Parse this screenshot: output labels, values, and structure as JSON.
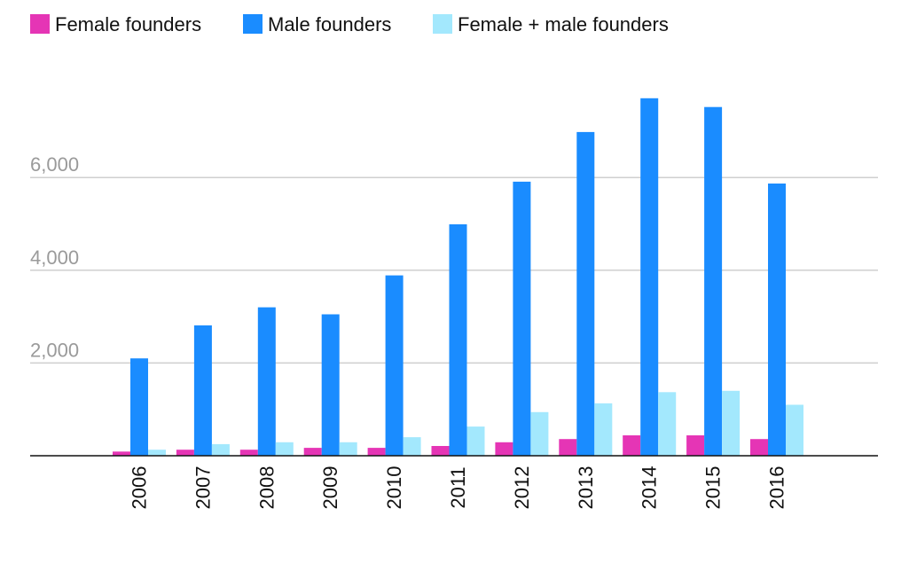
{
  "chart_data": {
    "type": "bar",
    "title": "",
    "xlabel": "",
    "ylabel": "",
    "categories": [
      "2006",
      "2007",
      "2008",
      "2009",
      "2010",
      "2011",
      "2012",
      "2013",
      "2014",
      "2015",
      "2016"
    ],
    "series": [
      {
        "name": "Female founders",
        "color": "#e535b5",
        "values": [
          90,
          130,
          130,
          170,
          170,
          210,
          290,
          360,
          440,
          440,
          360
        ]
      },
      {
        "name": "Male founders",
        "color": "#1a8cff",
        "values": [
          2100,
          2810,
          3200,
          3050,
          3890,
          4990,
          5910,
          6980,
          7710,
          7520,
          5870
        ]
      },
      {
        "name": "Female + male founders",
        "color": "#a3e8fd",
        "values": [
          130,
          250,
          290,
          290,
          400,
          630,
          940,
          1130,
          1370,
          1400,
          1100
        ]
      }
    ],
    "ylim": [
      0,
      8000
    ],
    "yticks": [
      {
        "value": 2000,
        "label": "2,000"
      },
      {
        "value": 4000,
        "label": "4,000"
      },
      {
        "value": 6000,
        "label": "6,000"
      }
    ],
    "grid": true,
    "legend_position": "top-left"
  }
}
